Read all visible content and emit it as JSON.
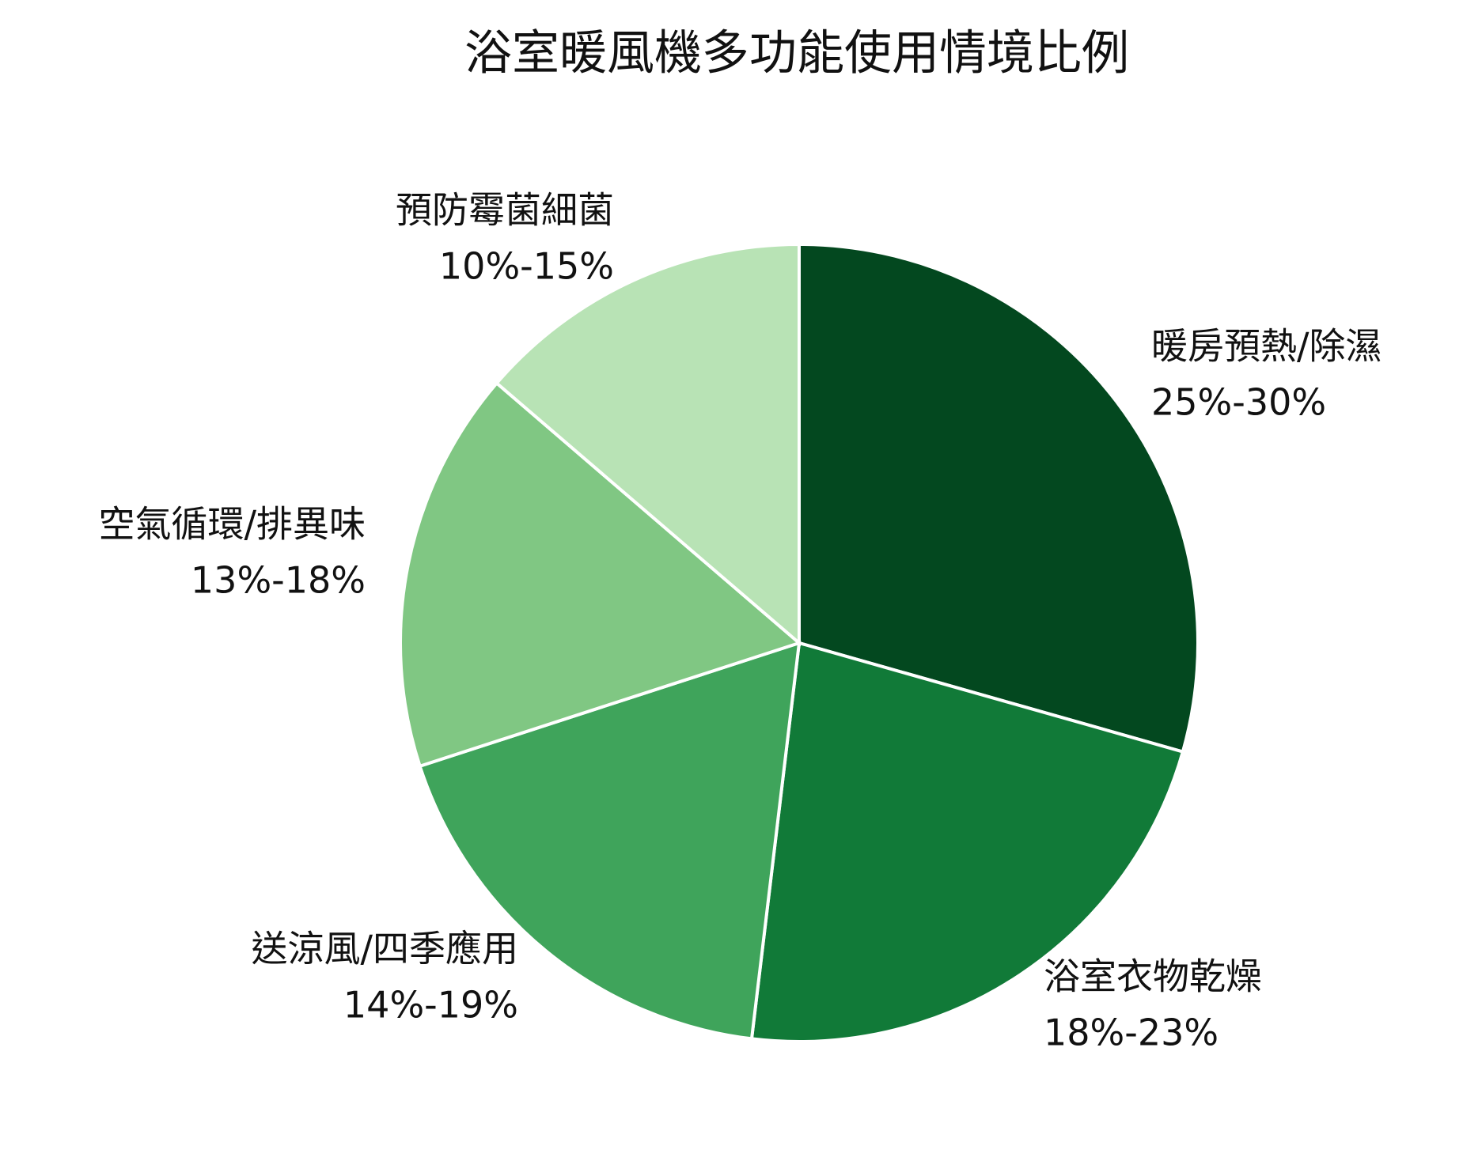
{
  "chart_data": {
    "type": "pie",
    "title": "浴室暖風機多功能使用情境比例",
    "categories": [
      "暖房預熱/除濕",
      "浴室衣物乾燥",
      "送涼風/四季應用",
      "空氣循環/排異味",
      "預防霉菌細菌"
    ],
    "values": [
      29.4,
      22.5,
      18.1,
      16.3,
      13.7
    ],
    "range_labels": [
      "25%-30%",
      "18%-23%",
      "14%-19%",
      "13%-18%",
      "10%-15%"
    ],
    "colors": [
      "#03481f",
      "#117a38",
      "#3fa45b",
      "#80c783",
      "#b8e3b5"
    ]
  }
}
